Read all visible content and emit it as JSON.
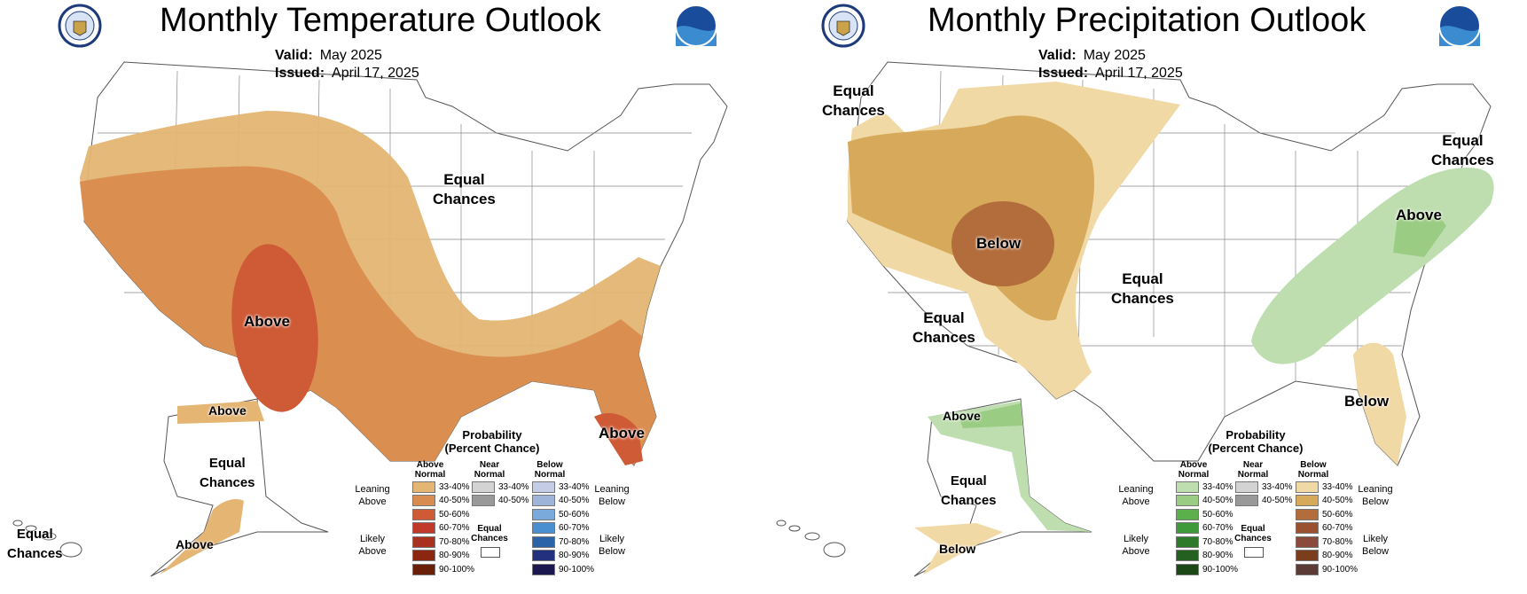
{
  "temperature": {
    "title": "Monthly Temperature Outlook",
    "valid_label": "Valid:",
    "valid_value": "May 2025",
    "issued_label": "Issued:",
    "issued_value": "April 17, 2025",
    "labels": {
      "equal_chances_east": "Equal\nChances",
      "above_southwest": "Above",
      "above_florida": "Above",
      "above_alaska_north": "Above",
      "equal_chances_alaska": "Equal\nChances",
      "above_alaska_south": "Above",
      "equal_chances_hawaii": "Equal\nChances"
    }
  },
  "precipitation": {
    "title": "Monthly Precipitation Outlook",
    "valid_label": "Valid:",
    "valid_value": "May 2025",
    "issued_label": "Issued:",
    "issued_value": "April 17, 2025",
    "labels": {
      "equal_chances_northwest": "Equal\nChances",
      "equal_chances_northeast": "Equal\nChances",
      "above_midatlantic": "Above",
      "below_center": "Below",
      "equal_chances_central": "Equal\nChances",
      "equal_chances_southwest": "Equal\nChances",
      "below_southeast": "Below",
      "above_alaska": "Above",
      "equal_chances_alaska": "Equal\nChances",
      "below_alaska": "Below"
    }
  },
  "legend": {
    "title": "Probability\n(Percent Chance)",
    "above_normal": "Above\nNormal",
    "near_normal": "Near\nNormal",
    "below_normal": "Below\nNormal",
    "leaning_above": "Leaning\nAbove",
    "leaning_below": "Leaning\nBelow",
    "likely_above": "Likely\nAbove",
    "likely_below": "Likely\nBelow",
    "equal_chances": "Equal\nChances",
    "ranges": [
      "33-40%",
      "40-50%",
      "50-60%",
      "60-70%",
      "70-80%",
      "80-90%",
      "90-100%"
    ],
    "near_ranges": [
      "33-40%",
      "40-50%"
    ],
    "temp_above_colors": [
      "#e4b573",
      "#d98c4f",
      "#cf5a36",
      "#c0392b",
      "#a8321f",
      "#8b2710",
      "#6a1f08"
    ],
    "temp_below_colors": [
      "#c5cde6",
      "#9eb4d8",
      "#7aa9dc",
      "#4a8fd0",
      "#2b63a8",
      "#23307d",
      "#1b1850"
    ],
    "precip_above_colors": [
      "#bedeb0",
      "#9bcc84",
      "#5cb04b",
      "#3e9a3a",
      "#2d7a2a",
      "#24601f",
      "#1c4818"
    ],
    "precip_below_colors": [
      "#f1d9a5",
      "#d7a95a",
      "#b36d3c",
      "#9a5131",
      "#8a4a3c",
      "#7a3e1f",
      "#5c3b36"
    ],
    "near_colors": [
      "#d3d3d3",
      "#999999"
    ]
  }
}
